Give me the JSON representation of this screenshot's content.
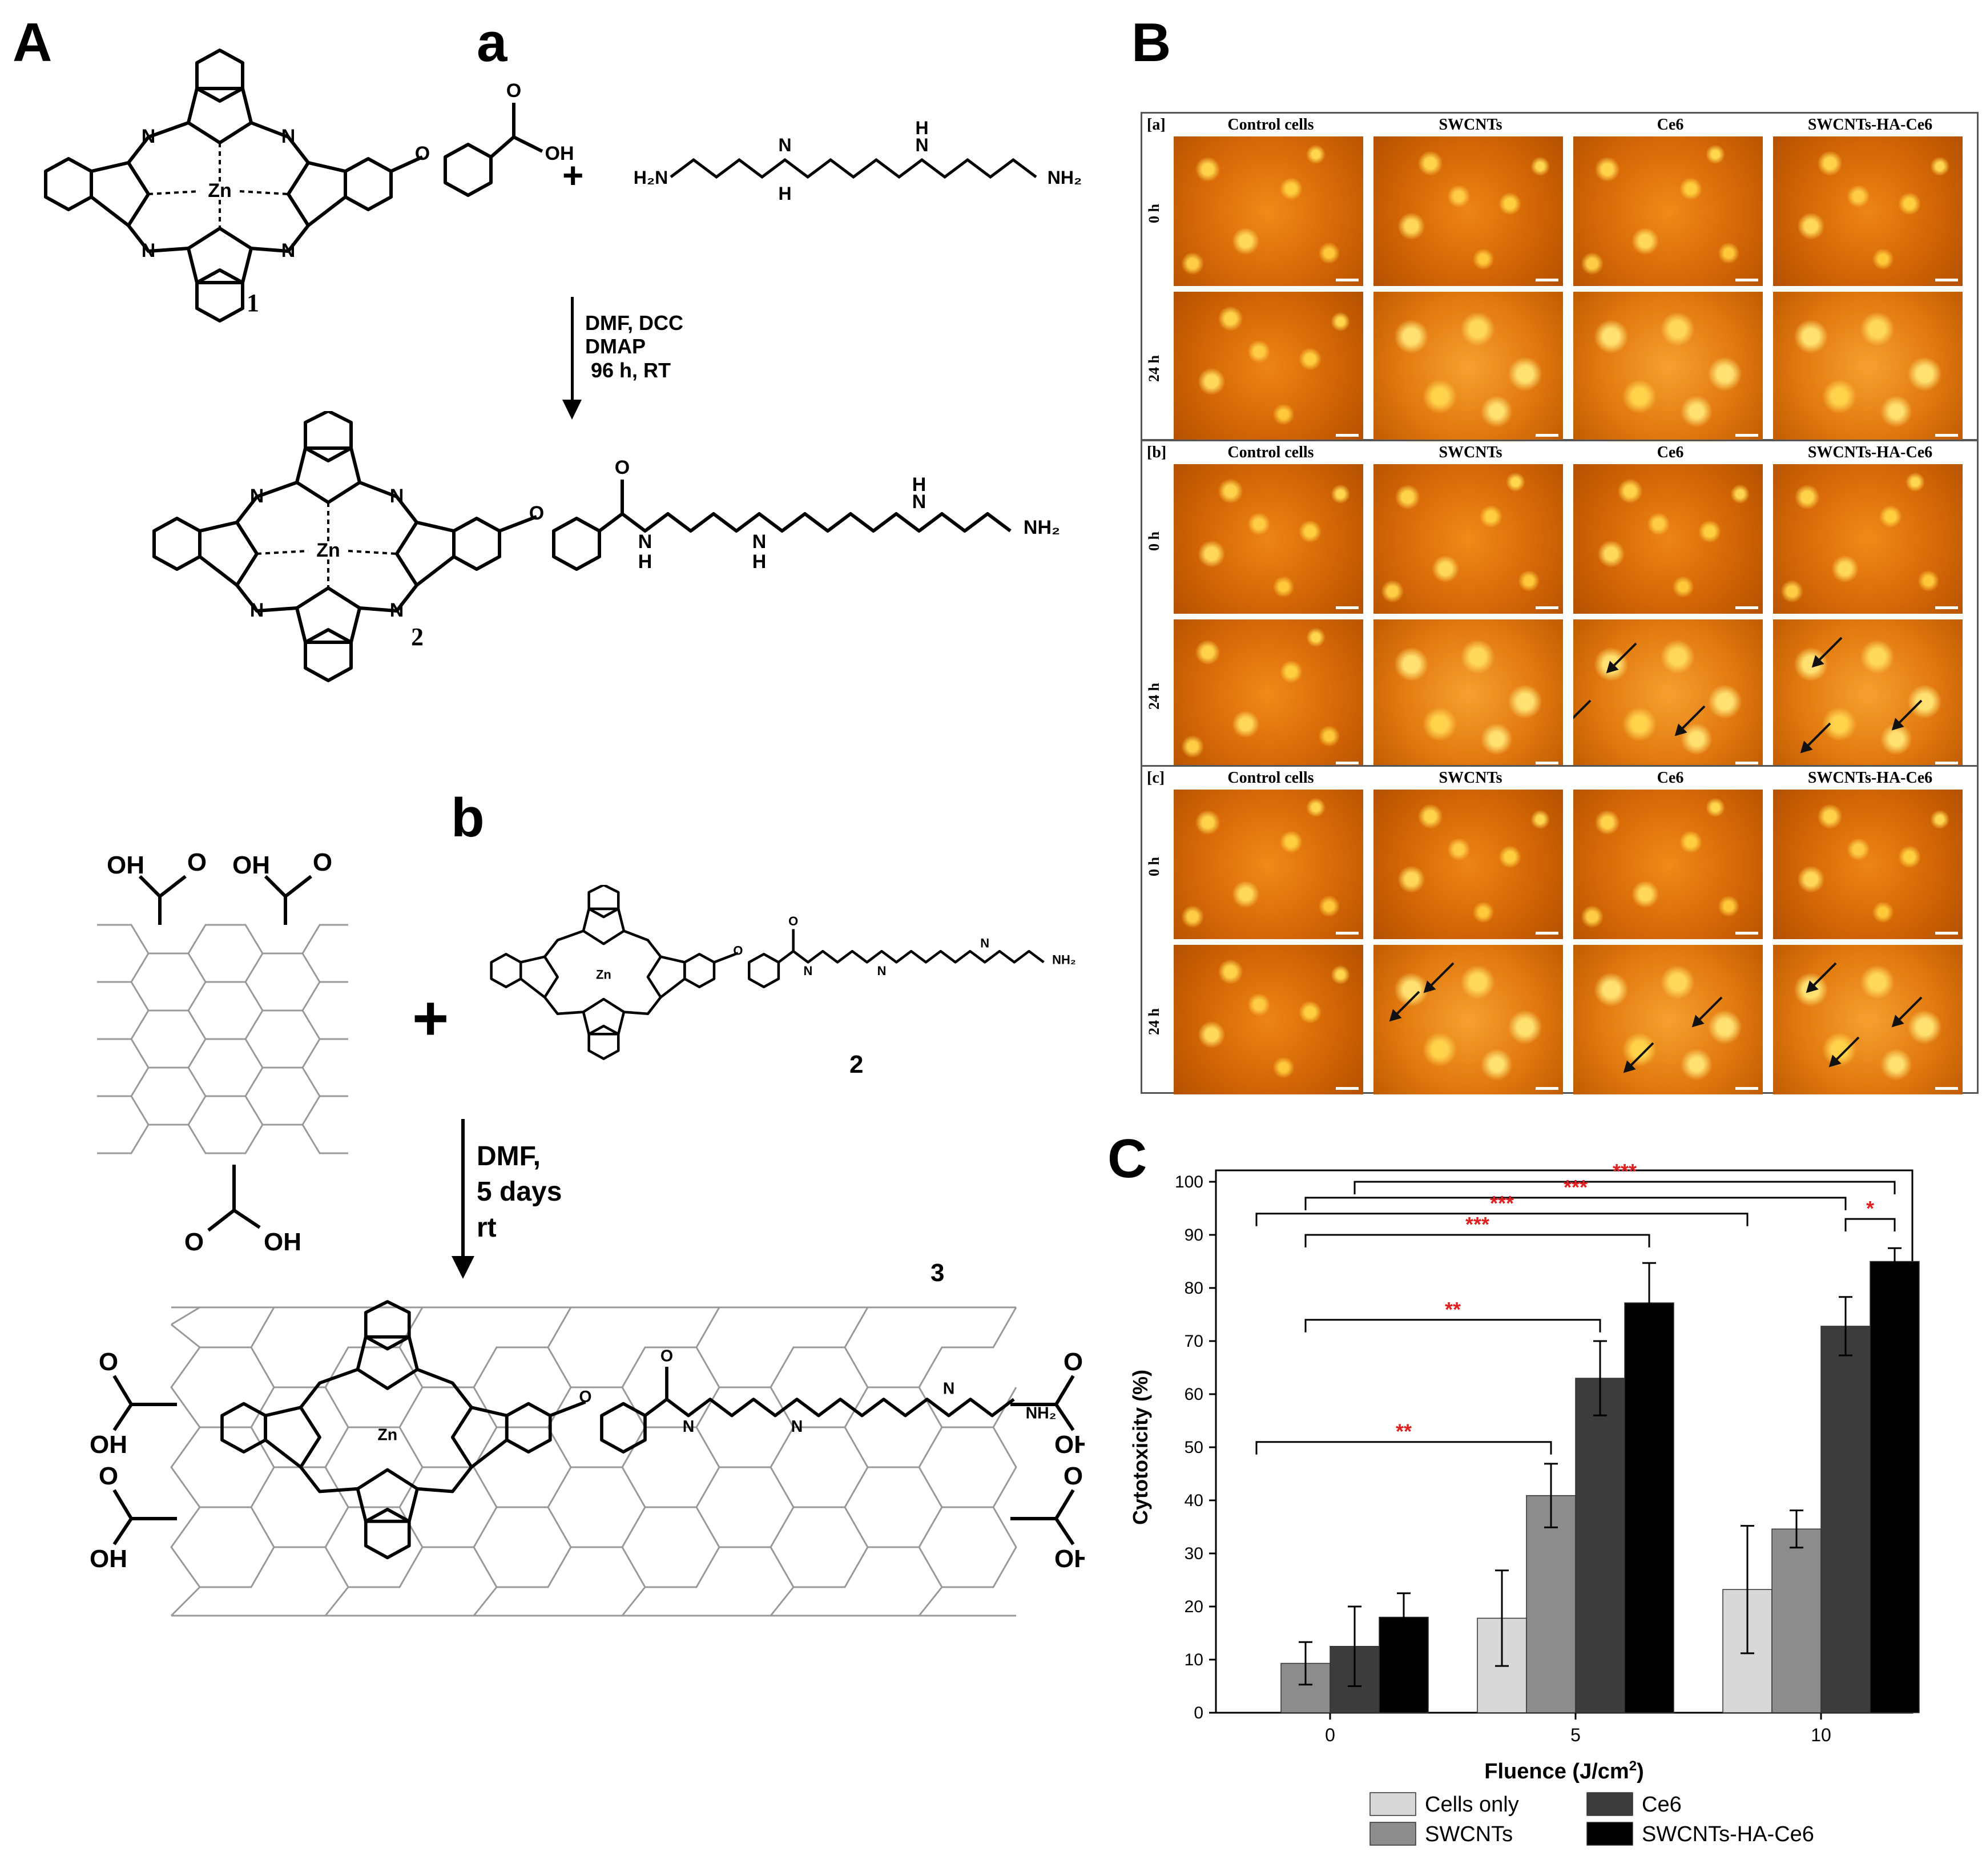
{
  "panels": {
    "A": "A",
    "B": "B",
    "C": "C",
    "a": "a",
    "b": "b"
  },
  "scheme_a": {
    "compound1_label": "1",
    "compound2_label": "2",
    "conditions": "DMF, DCC\nDMAP\n 96 h, RT",
    "plus": "+",
    "atoms": {
      "zn": "Zn",
      "n": "N",
      "o": "O",
      "oh": "OH",
      "h2n": "H2N",
      "nh2": "NH2",
      "nh": "H\nN",
      "h": "H"
    }
  },
  "scheme_b": {
    "compound2_label": "2",
    "compound3_label": "3",
    "conditions": "DMF,\n5 days\nrt",
    "plus": "+",
    "oh": "OH",
    "o": "O"
  },
  "microscopy": {
    "groups": [
      "[a]",
      "[b]",
      "[c]"
    ],
    "columns": [
      "Control cells",
      "SWCNTs",
      "Ce6",
      "SWCNTs-HA-Ce6"
    ],
    "rows": [
      "0 h",
      "24 h"
    ]
  },
  "chart_data": {
    "type": "bar",
    "ylabel": "Cytotoxicity (%)",
    "xlabel": "Fluence (J/cm2)",
    "xlabel_main": "Fluence (J/cm",
    "xlabel_sup": "2",
    "xlabel_end": ")",
    "categories": [
      "0",
      "5",
      "10"
    ],
    "ylim": [
      0,
      100
    ],
    "yticks": [
      "0",
      "10",
      "20",
      "30",
      "40",
      "50",
      "60",
      "70",
      "80",
      "90",
      "100"
    ],
    "series": [
      {
        "name": "Cells only",
        "color": "#d8d8d8",
        "values": [
          0,
          17.8,
          23.2
        ],
        "errors": [
          0,
          9,
          12
        ]
      },
      {
        "name": "SWCNTs",
        "color": "#8c8c8c",
        "values": [
          9.3,
          40.9,
          34.6
        ],
        "errors": [
          4,
          6,
          3.5
        ]
      },
      {
        "name": "Ce6",
        "color": "#3c3c3c",
        "values": [
          12.5,
          63.0,
          72.8
        ],
        "errors": [
          7.5,
          7,
          5.5
        ]
      },
      {
        "name": "SWCNTs-HA-Ce6",
        "color": "#000000",
        "values": [
          18.0,
          77.2,
          85.0
        ],
        "errors": [
          4.5,
          7.5,
          2.5
        ]
      }
    ],
    "significance": [
      "***",
      "***",
      "***",
      "*",
      "***",
      "**",
      "**"
    ],
    "legend_position": "bottom"
  }
}
